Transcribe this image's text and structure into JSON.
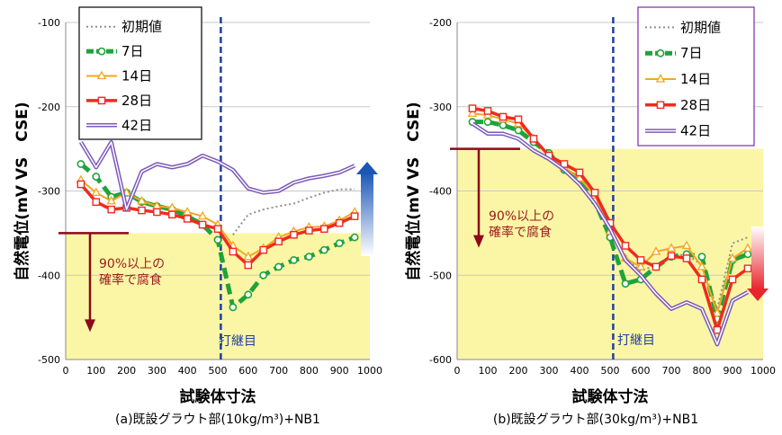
{
  "colors": {
    "risk_zone": "#fbf6a6",
    "joint_line": "#1f3f9f",
    "arrow_dark": "#8b0a1a",
    "initial": "#909090",
    "d7": "#1fa33a",
    "d14": "#f5a623",
    "d28": "#f02a1f",
    "d42": "#7c5ab8"
  },
  "chart_data": [
    {
      "type": "line",
      "caption": "(a)既設グラウト部(10kg/m³)+NB1",
      "xlabel": "試験体寸法",
      "ylabel": "自然電位(mV VS　CSE)",
      "xlim": [
        0,
        1000
      ],
      "ylim": [
        -500,
        -100
      ],
      "xticks": [
        0,
        100,
        200,
        300,
        400,
        500,
        600,
        700,
        800,
        900,
        1000
      ],
      "yticks": [
        -100,
        -200,
        -300,
        -400,
        -500
      ],
      "risk_threshold": -350,
      "joint_x": 510,
      "annotation": [
        "90%以上の",
        "確率で腐食"
      ],
      "joint_label": "打継目",
      "legend_position": "top-left",
      "series": [
        {
          "name": "初期値",
          "style": "dotted",
          "x": [
            550,
            600,
            650,
            700,
            750,
            800,
            850,
            900,
            950
          ],
          "y": [
            -352,
            -328,
            -322,
            -318,
            -315,
            -308,
            -302,
            -298,
            -298
          ]
        },
        {
          "name": "7日",
          "style": "dash-circle",
          "x": [
            50,
            100,
            150,
            200,
            250,
            300,
            350,
            400,
            450,
            500,
            550,
            600,
            650,
            700,
            750,
            800,
            850,
            900,
            950
          ],
          "y": [
            -268,
            -283,
            -307,
            -302,
            -313,
            -318,
            -322,
            -330,
            -340,
            -358,
            -438,
            -423,
            -400,
            -390,
            -382,
            -378,
            -370,
            -362,
            -355
          ]
        },
        {
          "name": "14日",
          "style": "triangle",
          "x": [
            50,
            100,
            150,
            200,
            250,
            300,
            350,
            400,
            450,
            500,
            550,
            600,
            650,
            700,
            750,
            800,
            850,
            900,
            950
          ],
          "y": [
            -287,
            -302,
            -312,
            -302,
            -312,
            -318,
            -320,
            -325,
            -330,
            -340,
            -365,
            -378,
            -368,
            -355,
            -348,
            -343,
            -342,
            -335,
            -325
          ]
        },
        {
          "name": "28日",
          "style": "square",
          "x": [
            50,
            100,
            150,
            200,
            250,
            300,
            350,
            400,
            450,
            500,
            550,
            600,
            650,
            700,
            750,
            800,
            850,
            900,
            950
          ],
          "y": [
            -292,
            -313,
            -322,
            -320,
            -323,
            -325,
            -328,
            -333,
            -340,
            -345,
            -372,
            -388,
            -370,
            -360,
            -352,
            -347,
            -345,
            -338,
            -330
          ]
        },
        {
          "name": "42日",
          "style": "double",
          "x": [
            50,
            100,
            150,
            200,
            250,
            300,
            350,
            400,
            450,
            500,
            550,
            600,
            650,
            700,
            750,
            800,
            850,
            900,
            950
          ],
          "y": [
            -242,
            -272,
            -242,
            -322,
            -277,
            -268,
            -272,
            -268,
            -258,
            -265,
            -275,
            -297,
            -302,
            -300,
            -290,
            -285,
            -282,
            -278,
            -270
          ]
        }
      ]
    },
    {
      "type": "line",
      "caption": "(b)既設グラウト部(30kg/m³)+NB1",
      "xlabel": "試験体寸法",
      "ylabel": "自然電位(mV VS　CSE)",
      "xlim": [
        0,
        1000
      ],
      "ylim": [
        -600,
        -200
      ],
      "xticks": [
        0,
        100,
        200,
        300,
        400,
        500,
        600,
        700,
        800,
        900,
        1000
      ],
      "yticks": [
        -200,
        -300,
        -400,
        -500,
        -600
      ],
      "risk_threshold": -350,
      "joint_x": 510,
      "annotation": [
        "90%以上の",
        "確率で腐食"
      ],
      "joint_label": "打継目",
      "legend_position": "top-right",
      "series": [
        {
          "name": "初期値",
          "style": "dotted",
          "x": [
            550,
            600,
            650,
            700,
            750,
            800,
            850,
            900,
            950
          ],
          "y": [
            -480,
            -495,
            -488,
            -478,
            -475,
            -488,
            -540,
            -462,
            -455
          ]
        },
        {
          "name": "7日",
          "style": "dash-circle",
          "x": [
            50,
            100,
            150,
            200,
            250,
            300,
            350,
            400,
            450,
            500,
            550,
            600,
            650,
            700,
            750,
            800,
            850,
            900,
            950
          ],
          "y": [
            -318,
            -318,
            -322,
            -328,
            -342,
            -355,
            -375,
            -385,
            -412,
            -455,
            -510,
            -505,
            -490,
            -478,
            -475,
            -478,
            -552,
            -482,
            -475
          ]
        },
        {
          "name": "14日",
          "style": "triangle",
          "x": [
            50,
            100,
            150,
            200,
            250,
            300,
            350,
            400,
            450,
            500,
            550,
            600,
            650,
            700,
            750,
            800,
            850,
            900,
            950
          ],
          "y": [
            -308,
            -310,
            -315,
            -320,
            -338,
            -358,
            -372,
            -385,
            -405,
            -448,
            -480,
            -490,
            -472,
            -468,
            -465,
            -490,
            -545,
            -480,
            -468
          ]
        },
        {
          "name": "28日",
          "style": "square",
          "x": [
            50,
            100,
            150,
            200,
            250,
            300,
            350,
            400,
            450,
            500,
            550,
            600,
            650,
            700,
            750,
            800,
            850,
            900,
            950
          ],
          "y": [
            -302,
            -305,
            -312,
            -315,
            -338,
            -358,
            -368,
            -378,
            -402,
            -438,
            -465,
            -482,
            -490,
            -477,
            -480,
            -505,
            -565,
            -505,
            -492
          ]
        },
        {
          "name": "42日",
          "style": "double",
          "x": [
            50,
            100,
            150,
            200,
            250,
            300,
            350,
            400,
            450,
            500,
            550,
            600,
            650,
            700,
            750,
            800,
            850,
            900,
            950
          ],
          "y": [
            -320,
            -332,
            -332,
            -338,
            -352,
            -362,
            -375,
            -392,
            -415,
            -445,
            -482,
            -500,
            -522,
            -540,
            -532,
            -540,
            -582,
            -530,
            -520
          ]
        }
      ]
    }
  ]
}
